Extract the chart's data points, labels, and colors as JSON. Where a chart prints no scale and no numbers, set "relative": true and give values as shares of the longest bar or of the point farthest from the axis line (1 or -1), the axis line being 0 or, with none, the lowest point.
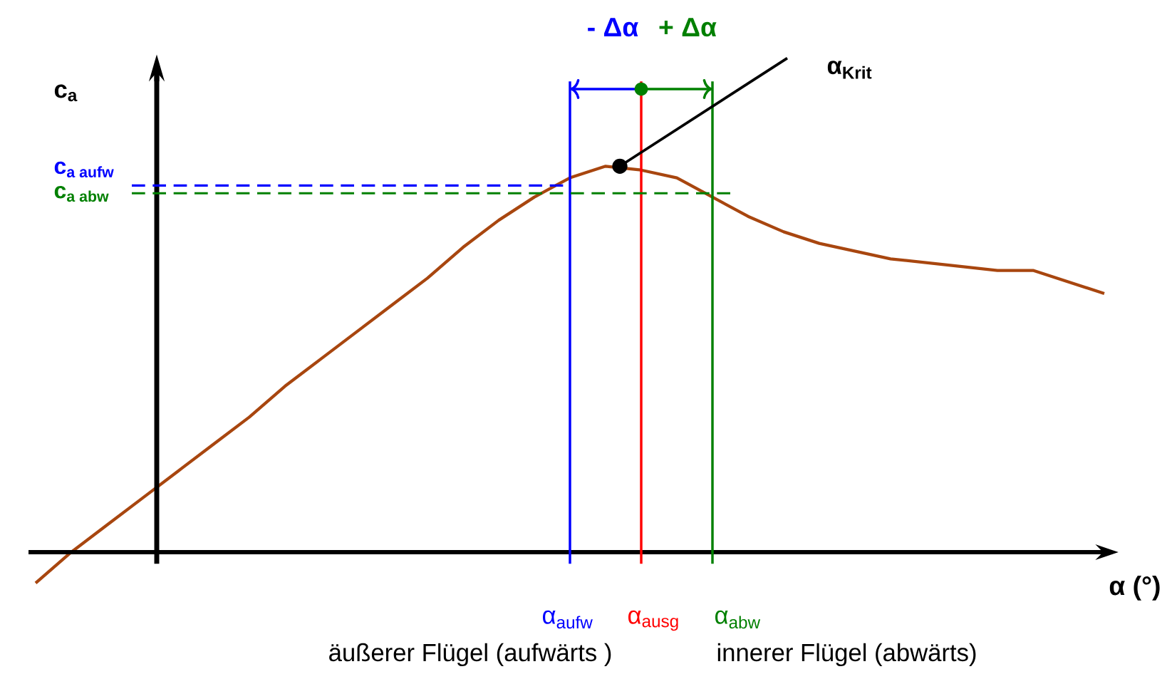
{
  "chart_data": {
    "type": "line",
    "relative": true,
    "xlabel": "α (°)",
    "ylabel": "\\textbf{c}_{\\textbf{a}}",
    "categories": [
      null,
      null,
      null,
      null,
      null,
      null,
      null,
      null,
      null,
      null,
      null,
      null,
      null,
      null,
      null,
      null,
      null,
      null,
      null,
      null,
      null,
      null,
      null,
      null,
      null,
      null,
      null,
      null,
      null,
      null,
      null
    ],
    "series": [
      {
        "color": "#a8460f",
        "values": [
          -0.08,
          0.0,
          0.07,
          0.14,
          0.21,
          0.28,
          0.35,
          0.43,
          0.5,
          0.57,
          0.64,
          0.71,
          0.79,
          0.86,
          0.92,
          0.97,
          1.0,
          0.99,
          0.97,
          0.92,
          0.87,
          0.83,
          0.8,
          0.78,
          0.76,
          0.75,
          0.74,
          0.73,
          0.73,
          0.7,
          0.67
        ]
      }
    ],
    "ref_lines": [
      {
        "axis": "y",
        "value": 0.95,
        "label": "\\textbf{c}_{\\textbf{a aufw}}",
        "color": "#0000ff",
        "line_style": "dashed"
      },
      {
        "axis": "y",
        "value": 0.93,
        "label": "\\textbf{c}_{\\textbf{a abw}}",
        "color": "#008000",
        "line_style": "dashed"
      }
    ],
    "annotations": [
      "- Δα",
      "+ Δα",
      "\\textbf{α}_{\\textbf{Krit}}",
      "\\text{α}_{\\text{aufw}}",
      "\\text{α}_{\\text{ausg}}",
      "\\text{α}_{\\text{abw}}",
      "äußerer Flügel (aufwärts )",
      "innerer Flügel (abwärts)"
    ],
    "marker": "none",
    "line_style": "solid",
    "legend": false
  }
}
